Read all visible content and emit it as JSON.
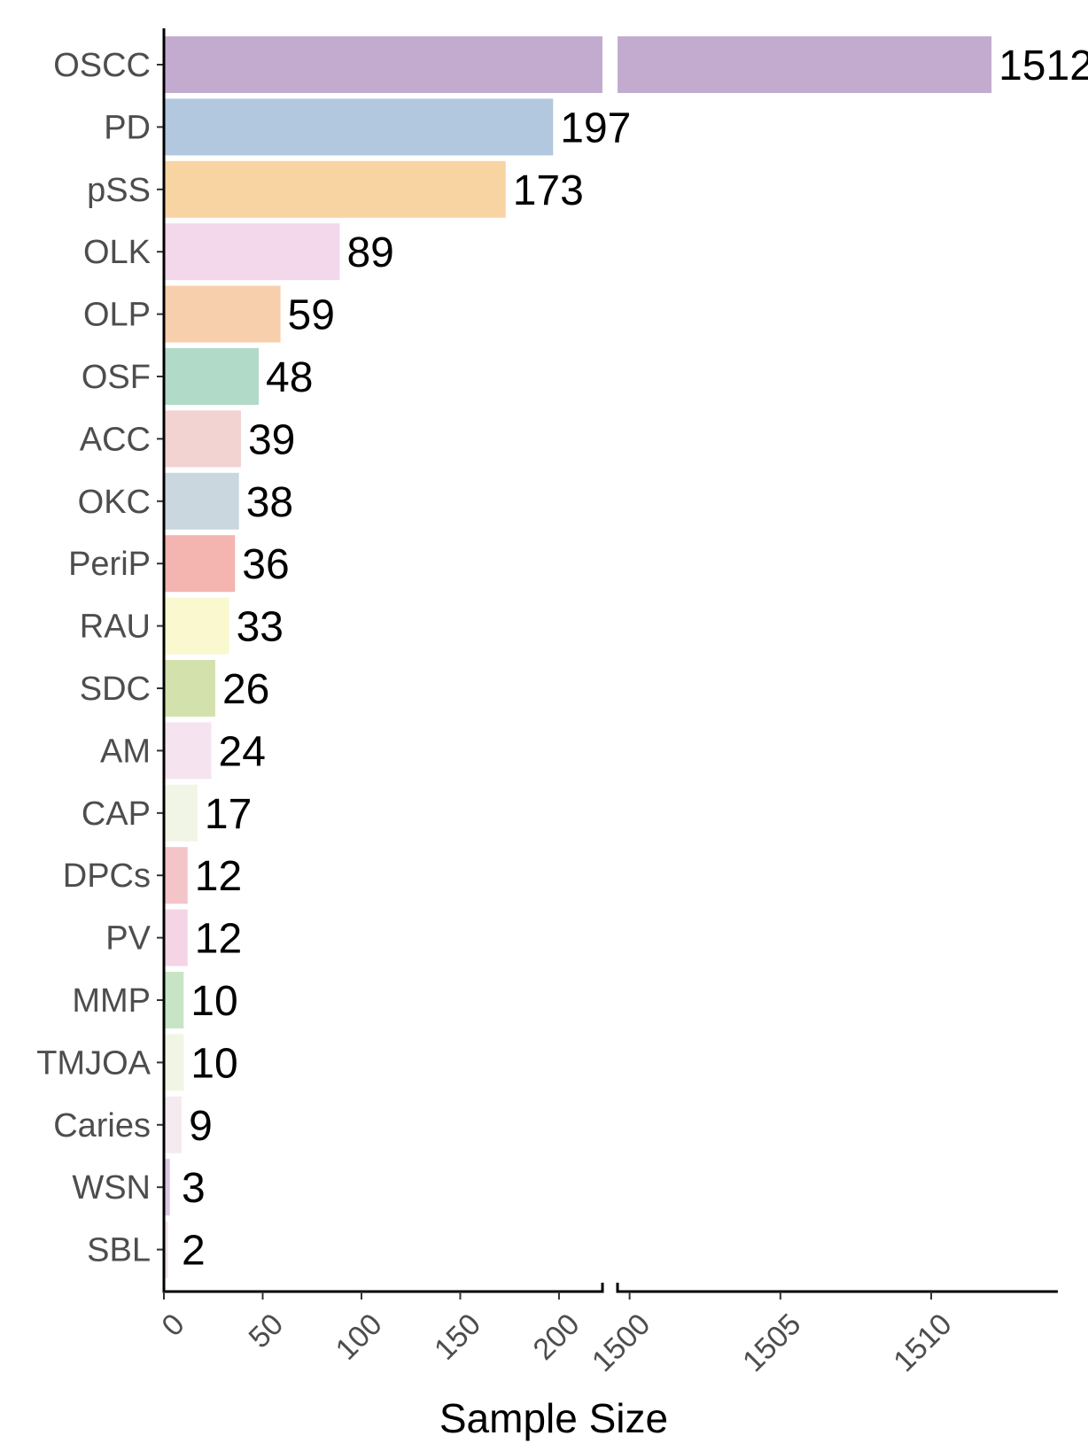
{
  "chart_data": {
    "type": "bar",
    "orientation": "horizontal",
    "xlabel": "Sample Size",
    "ylabel": "",
    "axis_break": true,
    "segments": [
      {
        "range": [
          0,
          222
        ],
        "ticks": [
          "0",
          "50",
          "100",
          "150",
          "200"
        ],
        "tick_values": [
          0,
          50,
          100,
          150,
          200
        ]
      },
      {
        "range": [
          1499.6,
          1514.2
        ],
        "ticks": [
          "1500",
          "1505",
          "1510"
        ],
        "tick_values": [
          1500,
          1505,
          1510
        ]
      }
    ],
    "grid": false,
    "legend": "none",
    "bars": [
      {
        "category": "OSCC",
        "value": 1512,
        "label": "1512",
        "color": "#c3abd0"
      },
      {
        "category": "PD",
        "value": 197,
        "label": "197",
        "color": "#b2c8df"
      },
      {
        "category": "pSS",
        "value": 173,
        "label": "173",
        "color": "#f9d4a3"
      },
      {
        "category": "OLK",
        "value": 89,
        "label": "89",
        "color": "#f3d7ea"
      },
      {
        "category": "OLP",
        "value": 59,
        "label": "59",
        "color": "#f8cfac"
      },
      {
        "category": "OSF",
        "value": 48,
        "label": "48",
        "color": "#b1dac8"
      },
      {
        "category": "ACC",
        "value": 39,
        "label": "39",
        "color": "#f2d3d2"
      },
      {
        "category": "OKC",
        "value": 38,
        "label": "38",
        "color": "#cbd7de"
      },
      {
        "category": "PeriP",
        "value": 36,
        "label": "36",
        "color": "#f4b4af"
      },
      {
        "category": "RAU",
        "value": 33,
        "label": "33",
        "color": "#f9f8cf"
      },
      {
        "category": "SDC",
        "value": 26,
        "label": "26",
        "color": "#d3e2ac"
      },
      {
        "category": "AM",
        "value": 24,
        "label": "24",
        "color": "#f5e4ef"
      },
      {
        "category": "CAP",
        "value": 17,
        "label": "17",
        "color": "#f1f5e5"
      },
      {
        "category": "DPCs",
        "value": 12,
        "label": "12",
        "color": "#f3c5c8"
      },
      {
        "category": "PV",
        "value": 12,
        "label": "12",
        "color": "#f4d5e6"
      },
      {
        "category": "MMP",
        "value": 10,
        "label": "10",
        "color": "#c7e5c6"
      },
      {
        "category": "TMJOA",
        "value": 10,
        "label": "10",
        "color": "#f1f5e5"
      },
      {
        "category": "Caries",
        "value": 9,
        "label": "9",
        "color": "#f4ebf0"
      },
      {
        "category": "WSN",
        "value": 3,
        "label": "3",
        "color": "#dbc8e3"
      },
      {
        "category": "SBL",
        "value": 2,
        "label": "2",
        "color": "#f3e0ea"
      }
    ]
  }
}
